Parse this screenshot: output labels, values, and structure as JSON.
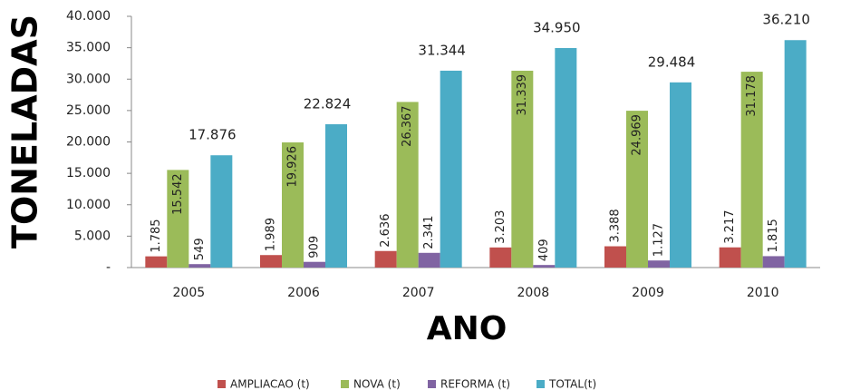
{
  "chart_data": {
    "type": "bar",
    "categories": [
      "2005",
      "2006",
      "2007",
      "2008",
      "2009",
      "2010"
    ],
    "series": [
      {
        "name": "AMPLIACAO (t)",
        "color": "#c0504d",
        "values": [
          1785,
          1989,
          2636,
          3203,
          3388,
          3217
        ],
        "value_labels": [
          "1.785",
          "1.989",
          "2.636",
          "3.203",
          "3.388",
          "3.217"
        ]
      },
      {
        "name": "NOVA (t)",
        "color": "#9bbb59",
        "values": [
          15542,
          19926,
          26367,
          31339,
          24969,
          31178
        ],
        "value_labels": [
          "15.542",
          "19.926",
          "26.367",
          "31.339",
          "24.969",
          "31.178"
        ]
      },
      {
        "name": "REFORMA (t)",
        "color": "#8064a2",
        "values": [
          549,
          909,
          2341,
          409,
          1127,
          1815
        ],
        "value_labels": [
          "549",
          "909",
          "2.341",
          "409",
          "1.127",
          "1.815"
        ]
      },
      {
        "name": "TOTAL(t)",
        "color": "#4bacc6",
        "values": [
          17876,
          22824,
          31344,
          34950,
          29484,
          36210
        ],
        "value_labels": [
          "17.876",
          "22.824",
          "31.344",
          "34.950",
          "29.484",
          "36.210"
        ]
      }
    ],
    "xlabel": "ANO",
    "ylabel": "TONELADAS",
    "ylim": [
      0,
      40000
    ],
    "yticks": [
      {
        "value": 0,
        "label": "-"
      },
      {
        "value": 5000,
        "label": "5.000"
      },
      {
        "value": 10000,
        "label": "10.000"
      },
      {
        "value": 15000,
        "label": "15.000"
      },
      {
        "value": 20000,
        "label": "20.000"
      },
      {
        "value": 25000,
        "label": "25.000"
      },
      {
        "value": 30000,
        "label": "30.000"
      },
      {
        "value": 35000,
        "label": "35.000"
      },
      {
        "value": 40000,
        "label": "40.000"
      }
    ],
    "grid": false,
    "legend": "bottom"
  }
}
